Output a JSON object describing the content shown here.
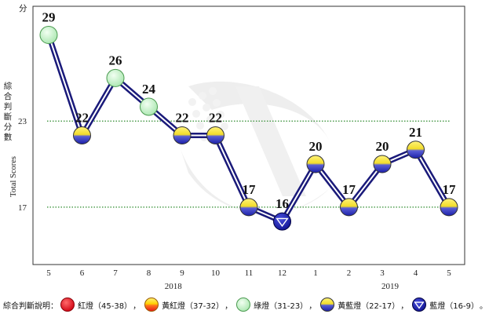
{
  "unit_label": "分",
  "y_axis_label_zh": "綜合判斷分數",
  "y_axis_label_en": "Total Scores",
  "legend": {
    "title": "綜合判斷說明：",
    "separator": "，",
    "terminator": "。",
    "items": [
      {
        "label": "紅燈（45-38）",
        "signal": "red"
      },
      {
        "label": "黃紅燈（37-32）",
        "signal": "yellow-red"
      },
      {
        "label": "綠燈（31-23）",
        "signal": "green"
      },
      {
        "label": "黃藍燈（22-17）",
        "signal": "yellow-blue"
      },
      {
        "label": "藍燈（16-9）",
        "signal": "blue"
      }
    ]
  },
  "colors": {
    "red": "#e8141b",
    "yellow": "#ffe23a",
    "green": "#c9f2cc",
    "blue": "#1b1fa8",
    "navy_line": "#1a1a7a",
    "threshold_line": "#2e8b2e"
  },
  "chart_data": {
    "type": "line",
    "x": [
      "5",
      "6",
      "7",
      "8",
      "9",
      "10",
      "11",
      "12",
      "1",
      "2",
      "3",
      "4",
      "5"
    ],
    "year_labels": [
      {
        "label": "2018",
        "span": [
          0,
          7
        ]
      },
      {
        "label": "2019",
        "span": [
          8,
          12
        ]
      }
    ],
    "series": [
      {
        "values": [
          29,
          22,
          26,
          24,
          22,
          22,
          17,
          16,
          20,
          17,
          20,
          21,
          17
        ],
        "signals": [
          "green",
          "yellow-blue",
          "green",
          "green",
          "yellow-blue",
          "yellow-blue",
          "yellow-blue",
          "blue",
          "yellow-blue",
          "yellow-blue",
          "yellow-blue",
          "yellow-blue",
          "yellow-blue"
        ]
      }
    ],
    "y_ticks": [
      23,
      17
    ],
    "thresholds": [
      23,
      17
    ],
    "ylim": [
      13,
      31
    ],
    "grid": false
  }
}
